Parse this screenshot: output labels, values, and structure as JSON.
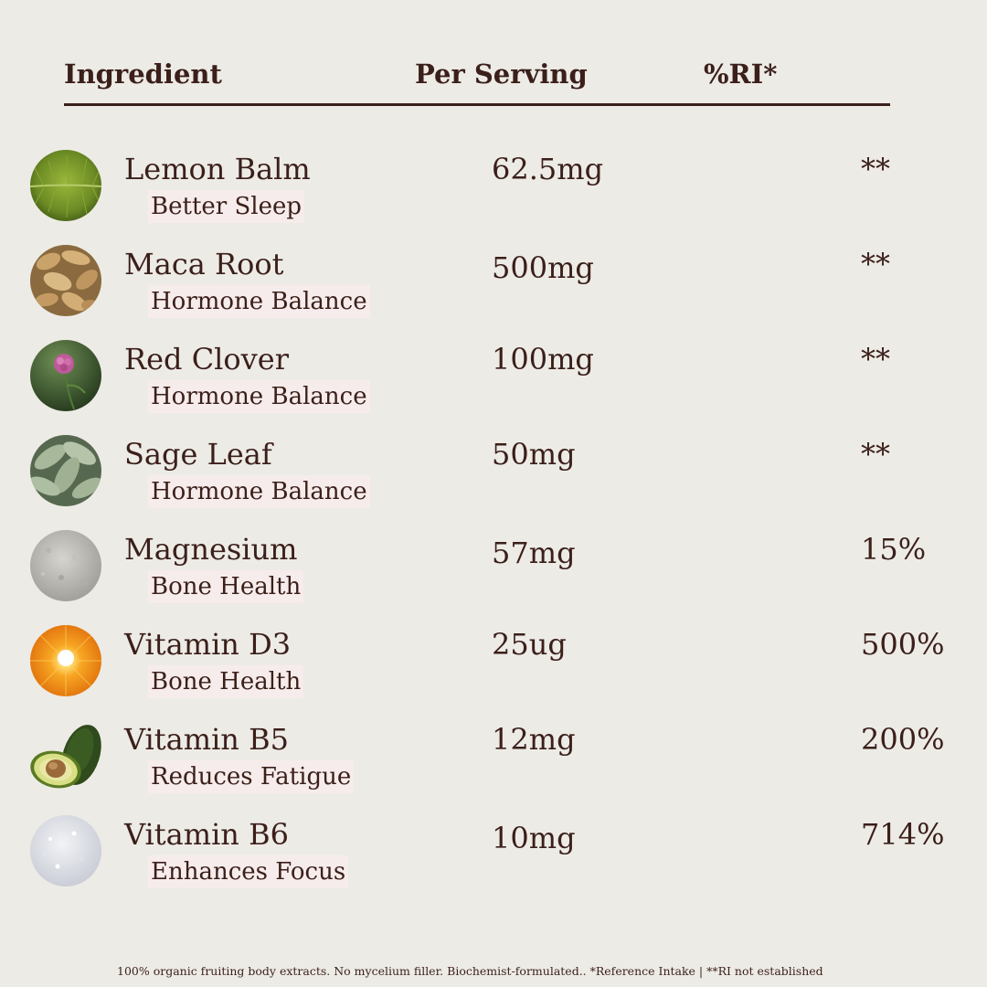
{
  "header": {
    "ingredient": "Ingredient",
    "per_serving": "Per Serving",
    "ri": "%RI*"
  },
  "rows": [
    {
      "name": "Lemon Balm",
      "benefit": "Better Sleep",
      "amount": "62.5mg",
      "ri": "**",
      "icon": "lemon-balm-leaf-icon"
    },
    {
      "name": "Maca Root",
      "benefit": "Hormone Balance",
      "amount": "500mg",
      "ri": "**",
      "icon": "maca-root-icon"
    },
    {
      "name": "Red Clover",
      "benefit": "Hormone Balance",
      "amount": "100mg",
      "ri": "**",
      "icon": "red-clover-flower-icon"
    },
    {
      "name": "Sage Leaf",
      "benefit": "Hormone Balance",
      "amount": "50mg",
      "ri": "**",
      "icon": "sage-leaf-icon"
    },
    {
      "name": "Magnesium",
      "benefit": "Bone Health",
      "amount": "57mg",
      "ri": "15%",
      "icon": "magnesium-powder-icon"
    },
    {
      "name": "Vitamin D3",
      "benefit": "Bone Health",
      "amount": "25ug",
      "ri": "500%",
      "icon": "sun-icon"
    },
    {
      "name": "Vitamin B5",
      "benefit": "Reduces Fatigue",
      "amount": "12mg",
      "ri": "200%",
      "icon": "avocado-icon"
    },
    {
      "name": "Vitamin B6",
      "benefit": "Enhances Focus",
      "amount": "10mg",
      "ri": "714%",
      "icon": "white-powder-icon"
    }
  ],
  "footnote": "100% organic fruiting body extracts. No mycelium filler. Biochemist-formulated.. *Reference Intake | **RI not established",
  "colors": {
    "background": "#edebe6",
    "text": "#3b1f1a",
    "benefit_highlight": "#f6eceb"
  }
}
